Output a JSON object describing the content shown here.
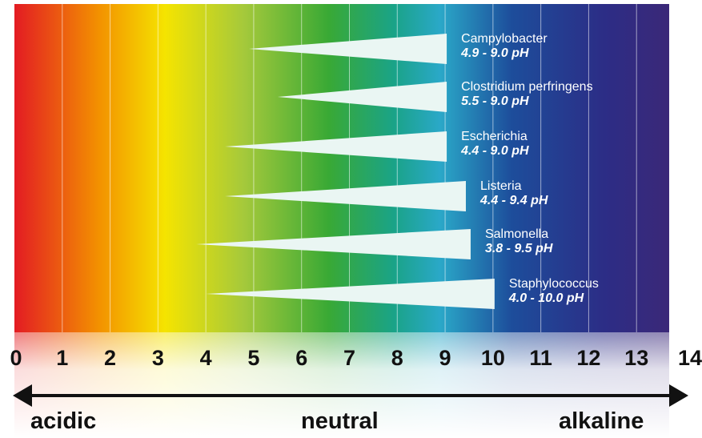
{
  "colors": {
    "spectrum": [
      "#e31b23",
      "#f39200",
      "#f5e400",
      "#a5c93b",
      "#39a935",
      "#1aa388",
      "#2aa8c8",
      "#1d4d9b",
      "#2c2d86",
      "#3b2878"
    ],
    "wedge": "#eaf6f3",
    "arrow": "#111111"
  },
  "bacteria": [
    {
      "name": "Campylobacter",
      "range": "4.9 - 9.0 pH",
      "min": 4.9,
      "max": 9.0
    },
    {
      "name": "Clostridium perfringens",
      "range": "5.5 - 9.0 pH",
      "min": 5.5,
      "max": 9.0
    },
    {
      "name": "Escherichia",
      "range": "4.4 - 9.0 pH",
      "min": 4.4,
      "max": 9.0
    },
    {
      "name": "Listeria",
      "range": "4.4 - 9.4 pH",
      "min": 4.4,
      "max": 9.4
    },
    {
      "name": "Salmonella",
      "range": "3.8 - 9.5 pH",
      "min": 3.8,
      "max": 9.5
    },
    {
      "name": "Staphylococcus",
      "range": "4.0 - 10.0 pH",
      "min": 4.0,
      "max": 10.0
    }
  ],
  "scale": {
    "ticks": [
      "0",
      "1",
      "2",
      "3",
      "4",
      "5",
      "6",
      "7",
      "8",
      "9",
      "10",
      "11",
      "12",
      "13",
      "14"
    ],
    "labels": {
      "acidic": "acidic",
      "neutral": "neutral",
      "alkaline": "alkaline"
    }
  }
}
